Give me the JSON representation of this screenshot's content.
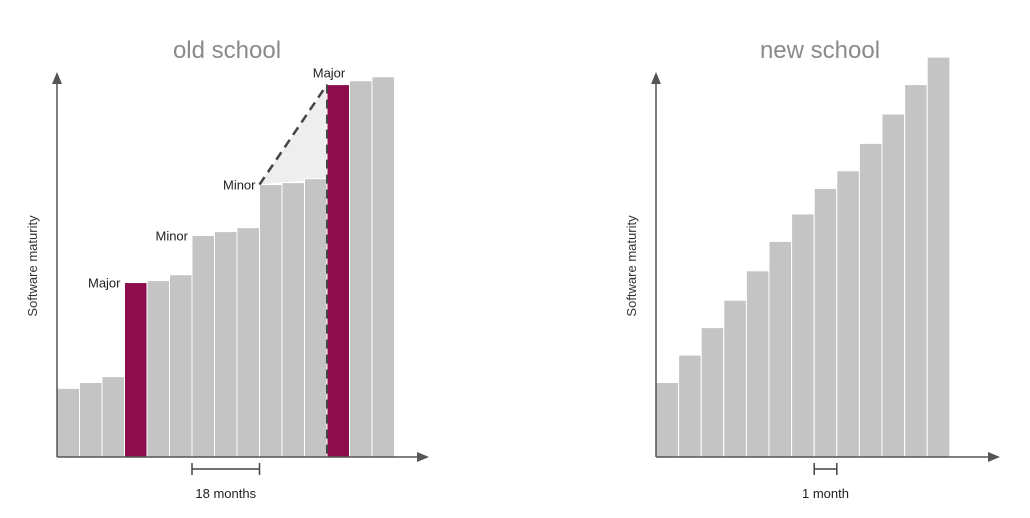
{
  "colors": {
    "bar": "#c4c4c4",
    "bar_edge": "#ffffff",
    "major": "#8c0c4c",
    "axis": "#555555",
    "shade": "#eeeeee"
  },
  "chart_data": [
    {
      "type": "bar",
      "title": "old school",
      "xlabel": "",
      "ylabel": "Software maturity",
      "ylim": [
        0,
        100
      ],
      "values": [
        17.5,
        19,
        20.5,
        44.5,
        45,
        46.5,
        56.5,
        57.5,
        58.5,
        69.5,
        70,
        71,
        95,
        96,
        97
      ],
      "major_bars": [
        3,
        12
      ],
      "annotations": [
        {
          "text": "Major",
          "bar": 3
        },
        {
          "text": "Minor",
          "bar": 6
        },
        {
          "text": "Minor",
          "bar": 9
        },
        {
          "text": "Major",
          "bar": 12
        }
      ],
      "jump_shade": {
        "from_bar": 9,
        "to_bar": 12
      },
      "scale_bar": {
        "label": "18 months",
        "from_bar": 6,
        "to_bar": 9
      }
    },
    {
      "type": "bar",
      "title": "new school",
      "xlabel": "",
      "ylabel": "Software maturity",
      "ylim": [
        0,
        100
      ],
      "values": [
        19,
        26,
        33,
        40,
        47.5,
        55,
        62,
        68.5,
        73,
        80,
        87.5,
        95,
        102
      ],
      "major_bars": [],
      "annotations": [],
      "scale_bar": {
        "label": "1 month",
        "from_bar": 7,
        "to_bar": 8
      }
    }
  ]
}
